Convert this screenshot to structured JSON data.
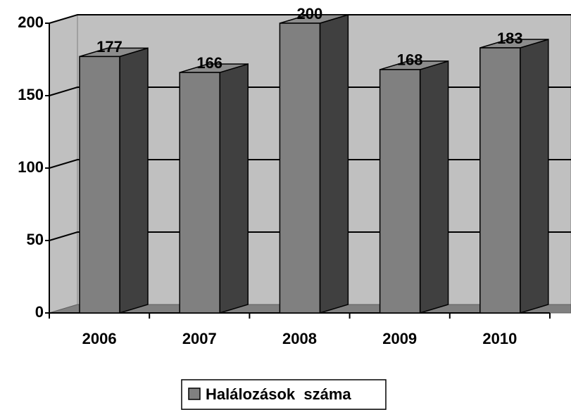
{
  "chart_data": {
    "type": "bar3d",
    "categories": [
      "2006",
      "2007",
      "2008",
      "2009",
      "2010"
    ],
    "series": [
      {
        "name": "Halálozások  száma",
        "color": "#808080",
        "values": [
          177,
          166,
          200,
          168,
          183
        ]
      }
    ],
    "ylim": [
      0,
      200
    ],
    "yticks": [
      0,
      50,
      100,
      150,
      200
    ],
    "grid": true,
    "legend": "bottom"
  }
}
